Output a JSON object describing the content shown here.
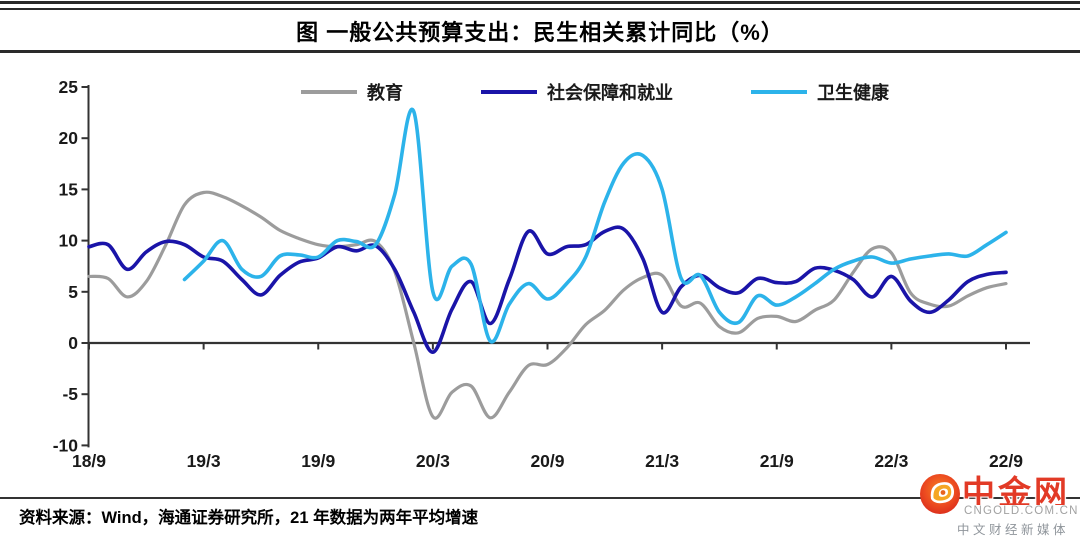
{
  "header": {
    "title": "图 一般公共预算支出：民生相关累计同比（%）"
  },
  "legend": [
    {
      "key": "education",
      "label": "教育",
      "color": "#9c9c9c"
    },
    {
      "key": "social-security-employment",
      "label": "社会保障和就业",
      "color": "#1a14a8"
    },
    {
      "key": "health",
      "label": "卫生健康",
      "color": "#2cb3ea"
    }
  ],
  "chart_data": {
    "type": "line",
    "title": "图 一般公共预算支出：民生相关累计同比（%）",
    "x": [
      "18/9",
      "18/10",
      "18/11",
      "18/12",
      "19/1",
      "19/2",
      "19/3",
      "19/4",
      "19/5",
      "19/6",
      "19/7",
      "19/8",
      "19/9",
      "19/10",
      "19/11",
      "19/12",
      "20/1",
      "20/2",
      "20/3",
      "20/4",
      "20/5",
      "20/6",
      "20/7",
      "20/8",
      "20/9",
      "20/10",
      "20/11",
      "20/12",
      "21/1",
      "21/2",
      "21/3",
      "21/4",
      "21/5",
      "21/6",
      "21/7",
      "21/8",
      "21/9",
      "21/10",
      "21/11",
      "21/12",
      "22/1",
      "22/2",
      "22/3",
      "22/4",
      "22/5",
      "22/6",
      "22/7",
      "22/8",
      "22/9"
    ],
    "x_tick_labels": [
      "18/9",
      "19/3",
      "19/9",
      "20/3",
      "20/9",
      "21/3",
      "21/9",
      "22/3",
      "22/9"
    ],
    "ylim": [
      -10,
      25
    ],
    "yticks": [
      -10,
      -5,
      0,
      5,
      10,
      15,
      20,
      25
    ],
    "grid": false,
    "legend_position": "top",
    "series": [
      {
        "key": "education",
        "name": "教育",
        "color": "#9c9c9c",
        "values": [
          6.5,
          6.3,
          4.5,
          6.0,
          9.5,
          13.5,
          14.7,
          14.3,
          13.4,
          12.3,
          11.0,
          10.2,
          9.6,
          9.4,
          9.6,
          9.9,
          7.0,
          0.0,
          -7.2,
          -4.8,
          -4.2,
          -7.3,
          -4.8,
          -2.2,
          -2.1,
          -0.5,
          1.8,
          3.2,
          5.2,
          6.4,
          6.6,
          3.6,
          3.9,
          1.6,
          1.0,
          2.4,
          2.6,
          2.1,
          3.2,
          4.2,
          6.9,
          9.2,
          8.8,
          4.9,
          3.8,
          3.6,
          4.6,
          5.4,
          5.8
        ]
      },
      {
        "key": "social-security-employment",
        "name": "社会保障和就业",
        "color": "#1a14a8",
        "values": [
          9.4,
          9.6,
          7.2,
          8.9,
          9.9,
          9.6,
          8.4,
          8.0,
          6.2,
          4.7,
          6.6,
          7.9,
          8.3,
          9.4,
          9.0,
          9.5,
          7.2,
          3.0,
          -0.9,
          3.3,
          6.0,
          1.9,
          6.2,
          10.9,
          8.7,
          9.4,
          9.6,
          10.9,
          11.1,
          8.2,
          3.0,
          5.5,
          6.6,
          5.4,
          4.9,
          6.3,
          5.9,
          6.0,
          7.3,
          7.1,
          6.2,
          4.5,
          6.5,
          4.1,
          3.0,
          4.2,
          6.0,
          6.7,
          6.9
        ]
      },
      {
        "key": "health",
        "name": "卫生健康",
        "color": "#2cb3ea",
        "values": [
          null,
          null,
          null,
          null,
          null,
          6.2,
          8.0,
          10.0,
          7.2,
          6.5,
          8.5,
          8.6,
          8.4,
          10.0,
          9.9,
          9.6,
          14.5,
          22.6,
          5.0,
          7.5,
          7.7,
          0.2,
          3.8,
          5.8,
          4.3,
          5.8,
          8.4,
          13.8,
          17.6,
          18.3,
          15.0,
          6.3,
          6.6,
          3.0,
          2.0,
          4.6,
          3.7,
          4.5,
          5.8,
          7.2,
          8.0,
          8.4,
          7.8,
          8.2,
          8.5,
          8.7,
          8.5,
          9.6,
          10.8
        ]
      }
    ]
  },
  "footer": {
    "source": "资料来源：Wind，海通证券研究所，21 年数据为两年平均增速"
  },
  "logo": {
    "name": "中金网",
    "domain": "CNGOLD.COM.CN",
    "tagline": "中文财经新媒体",
    "brand_color": "#e23a26"
  },
  "colors": {
    "axis": "#333333",
    "text": "#1a1a1a"
  }
}
